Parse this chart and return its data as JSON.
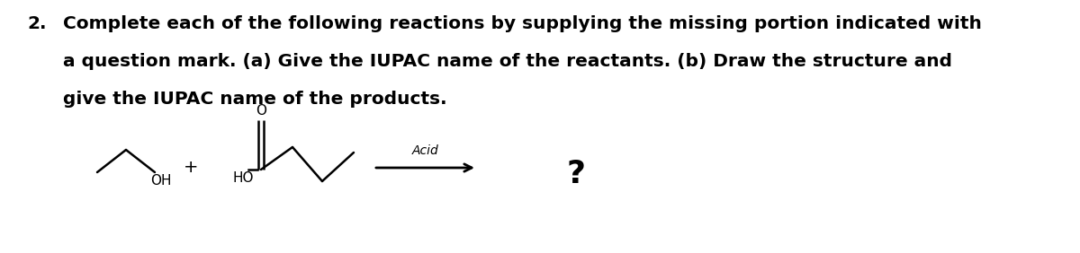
{
  "title_number": "2.",
  "title_text_line1": "Complete each of the following reactions by supplying the missing portion indicated with",
  "title_text_line2": "a question mark. (a) Give the IUPAC name of the reactants. (b) Draw the structure and",
  "title_text_line3": "give the IUPAC name of the products.",
  "question_mark": "?",
  "acid_label": "Acid",
  "plus_sign": "+",
  "OH_label": "OH",
  "HO_label": "HO",
  "O_label": "O",
  "bg_color": "#ffffff",
  "text_color": "#000000",
  "line_color": "#000000",
  "font_size_title": 14.5,
  "font_size_chem": 11,
  "font_size_qmark": 26,
  "font_size_acid": 10,
  "font_size_plus": 14
}
